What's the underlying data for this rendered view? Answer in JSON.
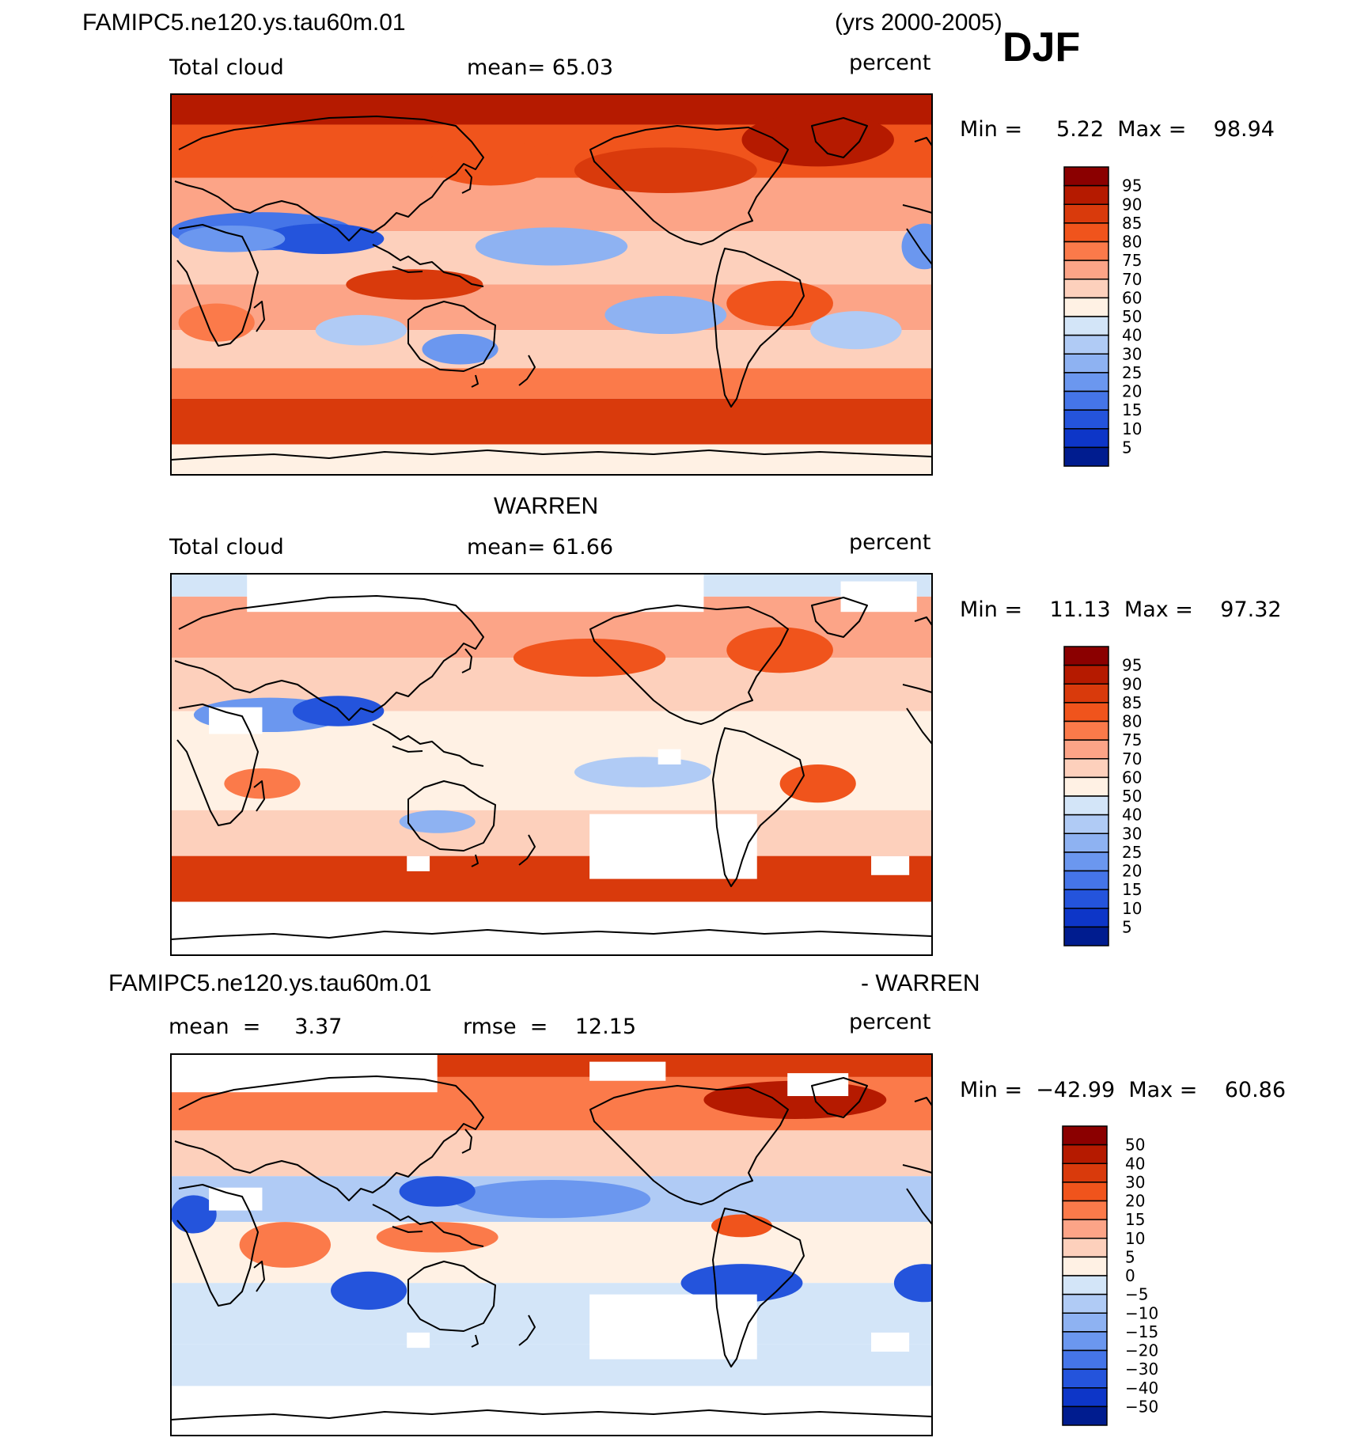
{
  "header": {
    "case_name": "FAMIPC5.ne120.ys.tau60m.01",
    "years": "(yrs 2000-2005)",
    "season": "DJF"
  },
  "panels": [
    {
      "id": "model",
      "title": "",
      "variable": "Total cloud",
      "stat_left": "mean=   65.03",
      "units": "percent",
      "minmax": "Min =     5.22  Max =    98.94",
      "colorbar_labels": [
        "95",
        "90",
        "85",
        "80",
        "75",
        "70",
        "60",
        "50",
        "40",
        "30",
        "25",
        "20",
        "15",
        "10",
        "5"
      ],
      "colors": [
        "#8b0000",
        "#b51a00",
        "#d93a0c",
        "#f0541c",
        "#fb7a4a",
        "#fca487",
        "#fdd0bc",
        "#fff1e4",
        "#d3e5f8",
        "#b0cbf5",
        "#8eb2f2",
        "#6b97ef",
        "#4575e8",
        "#2454dc",
        "#0d36c8",
        "#001c8f"
      ]
    },
    {
      "id": "obs",
      "title": "WARREN",
      "variable": "Total cloud",
      "stat_left": "mean=   61.66",
      "units": "percent",
      "minmax": "Min =    11.13  Max =    97.32",
      "colorbar_labels": [
        "95",
        "90",
        "85",
        "80",
        "75",
        "70",
        "60",
        "50",
        "40",
        "30",
        "25",
        "20",
        "15",
        "10",
        "5"
      ],
      "colors": [
        "#8b0000",
        "#b51a00",
        "#d93a0c",
        "#f0541c",
        "#fb7a4a",
        "#fca487",
        "#fdd0bc",
        "#fff1e4",
        "#d3e5f8",
        "#b0cbf5",
        "#8eb2f2",
        "#6b97ef",
        "#4575e8",
        "#2454dc",
        "#0d36c8",
        "#001c8f"
      ]
    },
    {
      "id": "diff",
      "title_left": "FAMIPC5.ne120.ys.tau60m.01",
      "title_right": "- WARREN",
      "stat_left": "mean  =     3.37",
      "stat_mid": "rmse  =    12.15",
      "units": "percent",
      "minmax": "Min =  −42.99  Max =    60.86",
      "colorbar_labels": [
        "50",
        "40",
        "30",
        "20",
        "15",
        "10",
        "5",
        "0",
        "−5",
        "−10",
        "−15",
        "−20",
        "−30",
        "−40",
        "−50"
      ],
      "colors": [
        "#8b0000",
        "#b51a00",
        "#d93a0c",
        "#f0541c",
        "#fb7a4a",
        "#fca487",
        "#fdd0bc",
        "#fff1e4",
        "#d3e5f8",
        "#b0cbf5",
        "#8eb2f2",
        "#6b97ef",
        "#4575e8",
        "#2454dc",
        "#0d36c8",
        "#001c8f"
      ]
    }
  ]
}
